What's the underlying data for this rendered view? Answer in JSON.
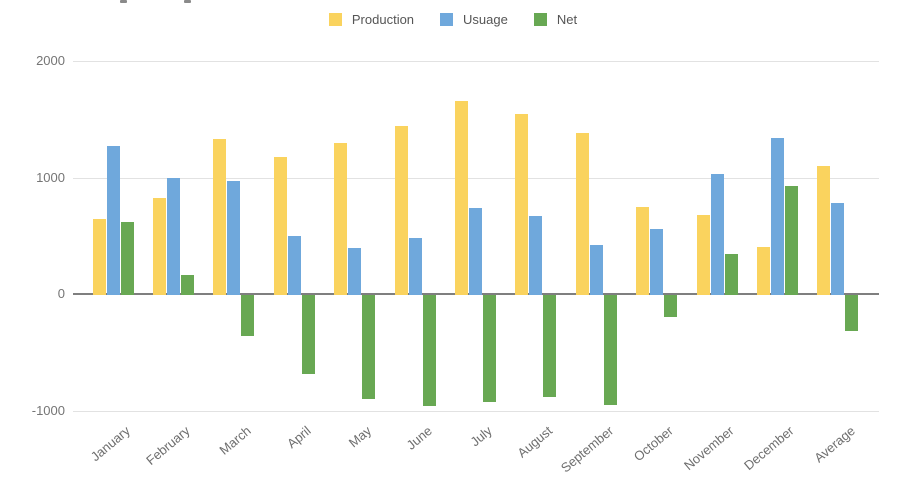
{
  "chart_data": {
    "type": "bar",
    "title": "",
    "xlabel": "",
    "ylabel": "",
    "categories": [
      "January",
      "February",
      "March",
      "April",
      "May",
      "June",
      "July",
      "August",
      "September",
      "October",
      "November",
      "December",
      "Average"
    ],
    "series": [
      {
        "name": "Production",
        "color": "#FAD35E",
        "values": [
          650,
          830,
          1330,
          1180,
          1300,
          1440,
          1660,
          1550,
          1380,
          750,
          680,
          410,
          1100
        ]
      },
      {
        "name": "Usuage",
        "color": "#6FA8DC",
        "values": [
          1270,
          1000,
          970,
          500,
          400,
          480,
          740,
          670,
          420,
          560,
          1030,
          1340,
          780
        ]
      },
      {
        "name": "Net",
        "color": "#68A853",
        "values": [
          620,
          170,
          -360,
          -680,
          -900,
          -960,
          -920,
          -880,
          -950,
          -190,
          350,
          930,
          -310
        ]
      }
    ],
    "ylim": [
      -1000,
      2000
    ],
    "yticks": [
      "2000",
      "1000",
      "0",
      "-1000"
    ],
    "ytick_values": [
      2000,
      1000,
      0,
      -1000
    ],
    "grid": true,
    "legend_position": "top",
    "axis_text_color": "#757575",
    "gridline_color": "#e2e2e2",
    "zeroline_color": "#7f7f7f"
  }
}
